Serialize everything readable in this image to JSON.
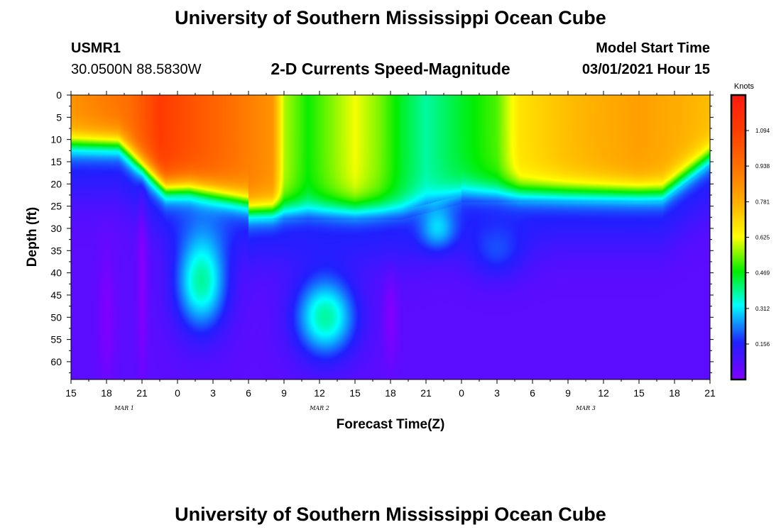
{
  "header": {
    "title": "University of Southern Mississippi Ocean Cube",
    "station_id": "USMR1",
    "station_coords": "30.0500N 88.5830W",
    "product_title": "2-D Currents Speed-Magnitude",
    "model_start_label": "Model Start Time",
    "model_start_value": "03/01/2021 Hour 15"
  },
  "footer": {
    "title": "University of Southern Mississippi Ocean Cube"
  },
  "chart_data": {
    "type": "heatmap",
    "title": "2-D Currents Speed-Magnitude",
    "xlabel": "Forecast Time(Z)",
    "ylabel": "Depth (ft)",
    "x_unit": "hours since 03/01/2021 15Z",
    "x_range": [
      0,
      54
    ],
    "y_range": [
      0,
      64
    ],
    "y_inverted": true,
    "x_tick_labels": [
      "15",
      "18",
      "21",
      "0",
      "3",
      "6",
      "9",
      "12",
      "15",
      "18",
      "21",
      "0",
      "3",
      "6",
      "9",
      "12",
      "15",
      "18",
      "21"
    ],
    "y_tick_labels": [
      "0",
      "5",
      "10",
      "15",
      "20",
      "25",
      "30",
      "35",
      "40",
      "45",
      "50",
      "55",
      "60"
    ],
    "y_ticks": [
      0,
      5,
      10,
      15,
      20,
      25,
      30,
      35,
      40,
      45,
      50,
      55,
      60
    ],
    "date_labels": [
      {
        "text": "MAR 1",
        "hour": 4.5
      },
      {
        "text": "MAR 2",
        "hour": 21
      },
      {
        "text": "MAR 3",
        "hour": 43.5
      }
    ],
    "colorbar": {
      "unit": "Knots",
      "min": 0.0,
      "max": 1.25,
      "ticks": [
        0.156,
        0.312,
        0.469,
        0.625,
        0.781,
        0.938,
        1.094
      ],
      "tick_labels": [
        "0.156",
        "0.312",
        "0.469",
        "0.625",
        "0.781",
        "0.938",
        "1.094"
      ]
    },
    "surface_speed_knots": [
      {
        "hour": 0,
        "value": 0.85
      },
      {
        "hour": 5,
        "value": 0.95
      },
      {
        "hour": 7.5,
        "value": 1.1
      },
      {
        "hour": 12,
        "value": 0.98
      },
      {
        "hour": 17,
        "value": 0.85
      },
      {
        "hour": 18,
        "value": 0.58
      },
      {
        "hour": 20,
        "value": 0.48
      },
      {
        "hour": 24,
        "value": 0.62
      },
      {
        "hour": 26,
        "value": 0.55
      },
      {
        "hour": 28,
        "value": 0.45
      },
      {
        "hour": 30,
        "value": 0.38
      },
      {
        "hour": 33,
        "value": 0.45
      },
      {
        "hour": 36,
        "value": 0.52
      },
      {
        "hour": 38,
        "value": 0.68
      },
      {
        "hour": 42,
        "value": 0.75
      },
      {
        "hour": 48,
        "value": 0.82
      },
      {
        "hour": 54,
        "value": 0.75
      }
    ]
  }
}
